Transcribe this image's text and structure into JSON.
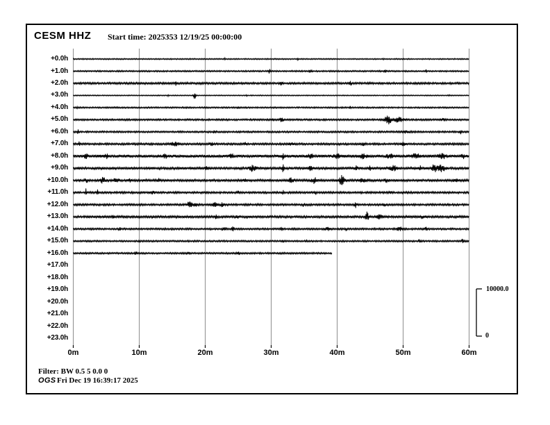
{
  "header": {
    "station_channel": "CESM HHZ",
    "start_time_label": "Start time: 2025353 12/19/25 00:00:00"
  },
  "footer": {
    "filter": "Filter: BW 0.5 5 0.0 0",
    "agency": "OGS",
    "timestamp": "Fri Dec 19 16:39:17 2025"
  },
  "scale_bar": {
    "max_label": "10000.0",
    "min_label": "0"
  },
  "colors": {
    "trace": "#000000",
    "gridline": "#8c8c8c",
    "background": "#ffffff"
  },
  "chart_data": {
    "type": "line",
    "subtype": "helicorder-seismogram",
    "title": "CESM HHZ",
    "station": "CESM",
    "channel": "HHZ",
    "start_time": "2025353 12/19/25 00:00:00",
    "x_unit": "minutes",
    "x_range": [
      0,
      60
    ],
    "x_ticks": [
      "0m",
      "10m",
      "20m",
      "30m",
      "40m",
      "50m",
      "60m"
    ],
    "grid": "vertical-only",
    "amplitude_scale": {
      "max": 10000.0,
      "min": 0
    },
    "rows": [
      {
        "label": "+0.0h",
        "end_min": 60,
        "noise": 0.5,
        "events": [
          [
            23,
            1.2,
            0.1
          ],
          [
            34,
            1.2,
            0.1
          ],
          [
            47,
            1,
            0.1
          ]
        ]
      },
      {
        "label": "+1.0h",
        "end_min": 60,
        "noise": 0.7,
        "events": [
          [
            29.7,
            2.5,
            0.15
          ],
          [
            36,
            2,
            0.2
          ],
          [
            47.3,
            2.5,
            0.15
          ],
          [
            53.5,
            2,
            0.1
          ]
        ]
      },
      {
        "label": "+2.0h",
        "end_min": 60,
        "noise": 1.1,
        "events": [
          [
            15.5,
            2.5,
            0.15
          ],
          [
            31.5,
            2.5,
            0.2
          ],
          [
            42,
            2.5,
            0.15
          ]
        ]
      },
      {
        "label": "+3.0h",
        "end_min": 60,
        "noise": 0.35,
        "events": [
          [
            14.4,
            1,
            0.1
          ],
          [
            18.4,
            5.5,
            0.15
          ],
          [
            26.3,
            1,
            0.1
          ],
          [
            57,
            1,
            0.1
          ]
        ]
      },
      {
        "label": "+4.0h",
        "end_min": 60,
        "noise": 0.7,
        "events": [
          [
            0.6,
            1.8,
            0.1
          ],
          [
            25,
            1.2,
            0.15
          ],
          [
            42,
            1.2,
            0.1
          ]
        ]
      },
      {
        "label": "+5.0h",
        "end_min": 60,
        "noise": 0.9,
        "events": [
          [
            30.2,
            2.5,
            0.15
          ],
          [
            31.6,
            3.5,
            0.25
          ],
          [
            38,
            1.8,
            0.15
          ],
          [
            47.7,
            7,
            0.45
          ],
          [
            49.2,
            3,
            0.9
          ],
          [
            56,
            1.5,
            0.3
          ]
        ]
      },
      {
        "label": "+6.0h",
        "end_min": 60,
        "noise": 0.9,
        "events": [
          [
            0.7,
            3.5,
            0.12
          ],
          [
            21.3,
            2,
            0.15
          ],
          [
            50.5,
            1.8,
            0.4
          ],
          [
            58.7,
            2.5,
            0.15
          ]
        ]
      },
      {
        "label": "+7.0h",
        "end_min": 60,
        "noise": 1.1,
        "events": [
          [
            0.9,
            2.5,
            0.12
          ],
          [
            15.4,
            2,
            0.8
          ],
          [
            21,
            1.8,
            0.4
          ],
          [
            26,
            2.2,
            0.15
          ],
          [
            33,
            1.8,
            0.3
          ],
          [
            44,
            1.8,
            0.3
          ],
          [
            50,
            1.8,
            0.3
          ]
        ]
      },
      {
        "label": "+8.0h",
        "end_min": 60,
        "noise": 1.7,
        "events": [
          [
            2,
            2.5,
            0.3
          ],
          [
            5,
            2.5,
            0.3
          ],
          [
            14,
            2.5,
            0.3
          ],
          [
            24,
            2.8,
            0.3
          ],
          [
            31.8,
            4,
            0.2
          ],
          [
            36,
            2.8,
            0.4
          ],
          [
            40,
            2.8,
            0.5
          ],
          [
            44,
            2.8,
            0.5
          ],
          [
            48,
            2.8,
            0.5
          ],
          [
            52,
            2.8,
            0.6
          ],
          [
            56,
            2.8,
            0.6
          ],
          [
            59,
            2.8,
            0.4
          ]
        ]
      },
      {
        "label": "+9.0h",
        "end_min": 60,
        "noise": 1.4,
        "events": [
          [
            20.2,
            2.5,
            0.2
          ],
          [
            27.2,
            4,
            0.5
          ],
          [
            31.8,
            5,
            0.15
          ],
          [
            36,
            3,
            0.3
          ],
          [
            42.9,
            3,
            0.2
          ],
          [
            44.9,
            3,
            0.2
          ],
          [
            48.5,
            3.5,
            0.5
          ],
          [
            52.6,
            3,
            0.15
          ],
          [
            54.7,
            8,
            0.3
          ],
          [
            55.8,
            4,
            0.6
          ]
        ]
      },
      {
        "label": "+10.0h",
        "end_min": 60,
        "noise": 1.3,
        "events": [
          [
            2,
            2.5,
            0.3
          ],
          [
            4.5,
            3.5,
            0.4
          ],
          [
            6.5,
            3.5,
            0.4
          ],
          [
            8.6,
            3.5,
            0.2
          ],
          [
            13,
            2,
            0.2
          ],
          [
            26,
            2.5,
            0.2
          ],
          [
            33,
            3,
            0.4
          ],
          [
            36.5,
            4,
            0.4
          ],
          [
            40.7,
            7,
            0.4
          ],
          [
            44,
            2.5,
            0.6
          ],
          [
            47.5,
            2.5,
            0.3
          ],
          [
            58,
            2.5,
            0.3
          ]
        ]
      },
      {
        "label": "+11.0h",
        "end_min": 60,
        "noise": 1.1,
        "events": [
          [
            1.9,
            5,
            0.12
          ],
          [
            3.7,
            3.5,
            0.12
          ],
          [
            12,
            1.8,
            0.3
          ],
          [
            25,
            1.8,
            0.2
          ],
          [
            31.8,
            2.5,
            0.15
          ],
          [
            36.8,
            2.5,
            0.15
          ],
          [
            48,
            1.8,
            0.2
          ]
        ]
      },
      {
        "label": "+12.0h",
        "end_min": 60,
        "noise": 1.1,
        "events": [
          [
            17.6,
            5,
            0.3
          ],
          [
            18.4,
            3.5,
            0.3
          ],
          [
            21.5,
            2.8,
            0.4
          ],
          [
            22.6,
            2.8,
            0.3
          ],
          [
            34.9,
            2.2,
            0.2
          ],
          [
            42.8,
            3.5,
            0.15
          ],
          [
            47.2,
            2.2,
            0.2
          ]
        ]
      },
      {
        "label": "+13.0h",
        "end_min": 60,
        "noise": 1.3,
        "events": [
          [
            6.1,
            2.2,
            0.15
          ],
          [
            21.6,
            3,
            0.15
          ],
          [
            25,
            2,
            0.2
          ],
          [
            44.5,
            6.5,
            0.25
          ],
          [
            46.5,
            2.5,
            0.5
          ],
          [
            53,
            2,
            0.3
          ]
        ]
      },
      {
        "label": "+14.0h",
        "end_min": 60,
        "noise": 0.95,
        "events": [
          [
            7,
            1.8,
            0.15
          ],
          [
            22.8,
            2.5,
            0.25
          ],
          [
            24.2,
            2.5,
            0.2
          ],
          [
            31.6,
            2.2,
            0.15
          ],
          [
            38.5,
            2.5,
            0.4
          ],
          [
            41.3,
            2.5,
            0.15
          ],
          [
            49.5,
            2.5,
            0.4
          ],
          [
            53.5,
            2,
            0.3
          ]
        ]
      },
      {
        "label": "+15.0h",
        "end_min": 60,
        "noise": 0.85,
        "events": [
          [
            10,
            1.8,
            0.15
          ],
          [
            31.8,
            2.2,
            0.15
          ],
          [
            35.3,
            2,
            0.15
          ],
          [
            52.5,
            1.8,
            0.2
          ],
          [
            59,
            2.5,
            0.15
          ]
        ]
      },
      {
        "label": "+16.0h",
        "end_min": 39.2,
        "noise": 0.85,
        "events": [
          [
            9.5,
            2.8,
            0.15
          ],
          [
            17.5,
            1.5,
            0.2
          ],
          [
            25,
            1.5,
            0.3
          ]
        ]
      },
      {
        "label": "+17.0h",
        "end_min": 0,
        "noise": 0,
        "events": []
      },
      {
        "label": "+18.0h",
        "end_min": 0,
        "noise": 0,
        "events": []
      },
      {
        "label": "+19.0h",
        "end_min": 0,
        "noise": 0,
        "events": []
      },
      {
        "label": "+20.0h",
        "end_min": 0,
        "noise": 0,
        "events": []
      },
      {
        "label": "+21.0h",
        "end_min": 0,
        "noise": 0,
        "events": []
      },
      {
        "label": "+22.0h",
        "end_min": 0,
        "noise": 0,
        "events": []
      },
      {
        "label": "+23.0h",
        "end_min": 0,
        "noise": 0,
        "events": []
      }
    ]
  }
}
